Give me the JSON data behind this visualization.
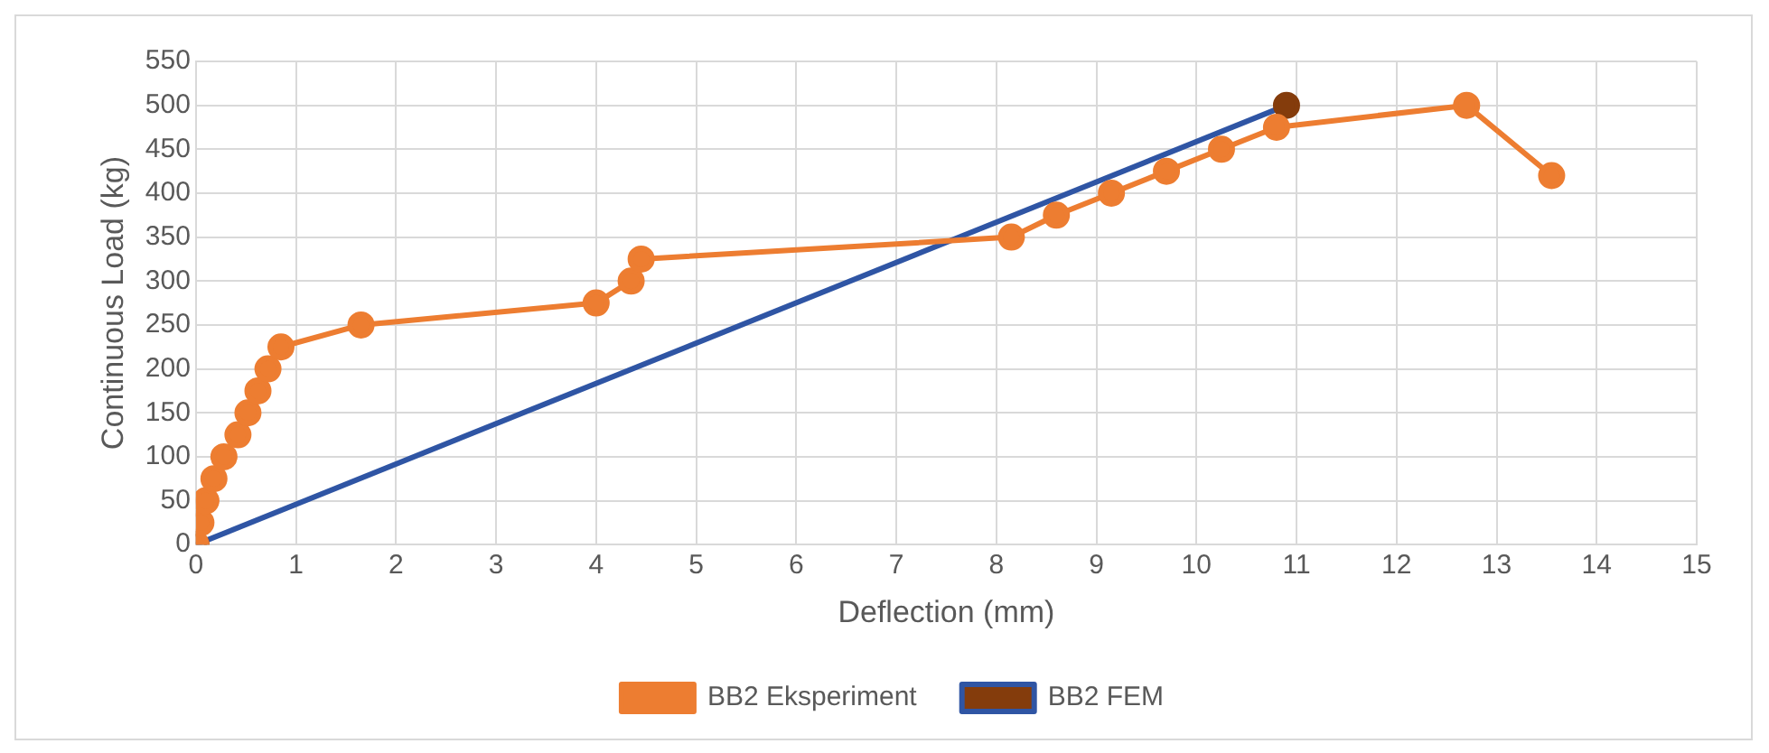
{
  "chart_data": {
    "type": "line",
    "xlabel": "Deflection (mm)",
    "ylabel": "Continuous Load (kg)",
    "xlim": [
      0,
      15
    ],
    "xticks": [
      0,
      1,
      2,
      3,
      4,
      5,
      6,
      7,
      8,
      9,
      10,
      11,
      12,
      13,
      14,
      15
    ],
    "ylim": [
      0,
      550
    ],
    "yticks": [
      0,
      50,
      100,
      150,
      200,
      250,
      300,
      350,
      400,
      450,
      500,
      550
    ],
    "grid": true,
    "legend": "bottom",
    "marker": "circle",
    "series": [
      {
        "name": "BB2 Eksperiment",
        "color": "#ed7d31",
        "x": [
          0,
          0.05,
          0.1,
          0.18,
          0.28,
          0.42,
          0.52,
          0.62,
          0.72,
          0.85,
          1.65,
          4.0,
          4.35,
          4.45,
          8.15,
          8.6,
          9.15,
          9.7,
          10.25,
          10.8,
          12.7,
          13.55
        ],
        "values": [
          0,
          25,
          50,
          75,
          100,
          125,
          150,
          175,
          200,
          225,
          250,
          275,
          300,
          325,
          350,
          375,
          400,
          425,
          450,
          475,
          500,
          420
        ]
      },
      {
        "name": "BB2 FEM",
        "color": "#2f55a4",
        "colors": [
          "#843c0c",
          "#843c0c"
        ],
        "x": [
          0,
          10.9
        ],
        "values": [
          0,
          500
        ]
      }
    ]
  }
}
